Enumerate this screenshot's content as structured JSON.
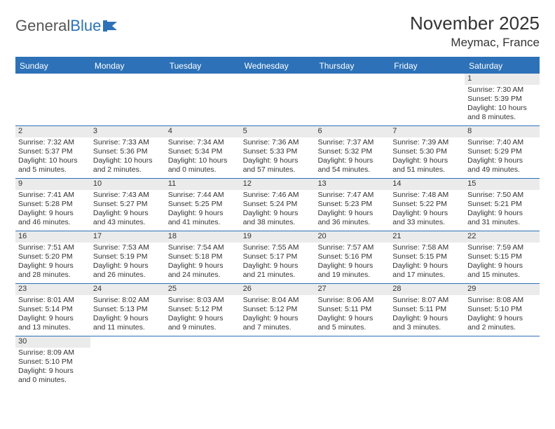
{
  "logo": {
    "general": "General",
    "blue": "Blue"
  },
  "title": "November 2025",
  "location": "Meymac, France",
  "colors": {
    "header_bg": "#2d72b8",
    "header_text": "#ffffff",
    "daynum_bg": "#ebebeb",
    "border": "#2d72b8",
    "text": "#333333",
    "page_bg": "#ffffff"
  },
  "weekdays": [
    "Sunday",
    "Monday",
    "Tuesday",
    "Wednesday",
    "Thursday",
    "Friday",
    "Saturday"
  ],
  "weeks": [
    [
      {
        "n": "",
        "sr": "",
        "ss": "",
        "dl": ""
      },
      {
        "n": "",
        "sr": "",
        "ss": "",
        "dl": ""
      },
      {
        "n": "",
        "sr": "",
        "ss": "",
        "dl": ""
      },
      {
        "n": "",
        "sr": "",
        "ss": "",
        "dl": ""
      },
      {
        "n": "",
        "sr": "",
        "ss": "",
        "dl": ""
      },
      {
        "n": "",
        "sr": "",
        "ss": "",
        "dl": ""
      },
      {
        "n": "1",
        "sr": "Sunrise: 7:30 AM",
        "ss": "Sunset: 5:39 PM",
        "dl": "Daylight: 10 hours and 8 minutes."
      }
    ],
    [
      {
        "n": "2",
        "sr": "Sunrise: 7:32 AM",
        "ss": "Sunset: 5:37 PM",
        "dl": "Daylight: 10 hours and 5 minutes."
      },
      {
        "n": "3",
        "sr": "Sunrise: 7:33 AM",
        "ss": "Sunset: 5:36 PM",
        "dl": "Daylight: 10 hours and 2 minutes."
      },
      {
        "n": "4",
        "sr": "Sunrise: 7:34 AM",
        "ss": "Sunset: 5:34 PM",
        "dl": "Daylight: 10 hours and 0 minutes."
      },
      {
        "n": "5",
        "sr": "Sunrise: 7:36 AM",
        "ss": "Sunset: 5:33 PM",
        "dl": "Daylight: 9 hours and 57 minutes."
      },
      {
        "n": "6",
        "sr": "Sunrise: 7:37 AM",
        "ss": "Sunset: 5:32 PM",
        "dl": "Daylight: 9 hours and 54 minutes."
      },
      {
        "n": "7",
        "sr": "Sunrise: 7:39 AM",
        "ss": "Sunset: 5:30 PM",
        "dl": "Daylight: 9 hours and 51 minutes."
      },
      {
        "n": "8",
        "sr": "Sunrise: 7:40 AM",
        "ss": "Sunset: 5:29 PM",
        "dl": "Daylight: 9 hours and 49 minutes."
      }
    ],
    [
      {
        "n": "9",
        "sr": "Sunrise: 7:41 AM",
        "ss": "Sunset: 5:28 PM",
        "dl": "Daylight: 9 hours and 46 minutes."
      },
      {
        "n": "10",
        "sr": "Sunrise: 7:43 AM",
        "ss": "Sunset: 5:27 PM",
        "dl": "Daylight: 9 hours and 43 minutes."
      },
      {
        "n": "11",
        "sr": "Sunrise: 7:44 AM",
        "ss": "Sunset: 5:25 PM",
        "dl": "Daylight: 9 hours and 41 minutes."
      },
      {
        "n": "12",
        "sr": "Sunrise: 7:46 AM",
        "ss": "Sunset: 5:24 PM",
        "dl": "Daylight: 9 hours and 38 minutes."
      },
      {
        "n": "13",
        "sr": "Sunrise: 7:47 AM",
        "ss": "Sunset: 5:23 PM",
        "dl": "Daylight: 9 hours and 36 minutes."
      },
      {
        "n": "14",
        "sr": "Sunrise: 7:48 AM",
        "ss": "Sunset: 5:22 PM",
        "dl": "Daylight: 9 hours and 33 minutes."
      },
      {
        "n": "15",
        "sr": "Sunrise: 7:50 AM",
        "ss": "Sunset: 5:21 PM",
        "dl": "Daylight: 9 hours and 31 minutes."
      }
    ],
    [
      {
        "n": "16",
        "sr": "Sunrise: 7:51 AM",
        "ss": "Sunset: 5:20 PM",
        "dl": "Daylight: 9 hours and 28 minutes."
      },
      {
        "n": "17",
        "sr": "Sunrise: 7:53 AM",
        "ss": "Sunset: 5:19 PM",
        "dl": "Daylight: 9 hours and 26 minutes."
      },
      {
        "n": "18",
        "sr": "Sunrise: 7:54 AM",
        "ss": "Sunset: 5:18 PM",
        "dl": "Daylight: 9 hours and 24 minutes."
      },
      {
        "n": "19",
        "sr": "Sunrise: 7:55 AM",
        "ss": "Sunset: 5:17 PM",
        "dl": "Daylight: 9 hours and 21 minutes."
      },
      {
        "n": "20",
        "sr": "Sunrise: 7:57 AM",
        "ss": "Sunset: 5:16 PM",
        "dl": "Daylight: 9 hours and 19 minutes."
      },
      {
        "n": "21",
        "sr": "Sunrise: 7:58 AM",
        "ss": "Sunset: 5:15 PM",
        "dl": "Daylight: 9 hours and 17 minutes."
      },
      {
        "n": "22",
        "sr": "Sunrise: 7:59 AM",
        "ss": "Sunset: 5:15 PM",
        "dl": "Daylight: 9 hours and 15 minutes."
      }
    ],
    [
      {
        "n": "23",
        "sr": "Sunrise: 8:01 AM",
        "ss": "Sunset: 5:14 PM",
        "dl": "Daylight: 9 hours and 13 minutes."
      },
      {
        "n": "24",
        "sr": "Sunrise: 8:02 AM",
        "ss": "Sunset: 5:13 PM",
        "dl": "Daylight: 9 hours and 11 minutes."
      },
      {
        "n": "25",
        "sr": "Sunrise: 8:03 AM",
        "ss": "Sunset: 5:12 PM",
        "dl": "Daylight: 9 hours and 9 minutes."
      },
      {
        "n": "26",
        "sr": "Sunrise: 8:04 AM",
        "ss": "Sunset: 5:12 PM",
        "dl": "Daylight: 9 hours and 7 minutes."
      },
      {
        "n": "27",
        "sr": "Sunrise: 8:06 AM",
        "ss": "Sunset: 5:11 PM",
        "dl": "Daylight: 9 hours and 5 minutes."
      },
      {
        "n": "28",
        "sr": "Sunrise: 8:07 AM",
        "ss": "Sunset: 5:11 PM",
        "dl": "Daylight: 9 hours and 3 minutes."
      },
      {
        "n": "29",
        "sr": "Sunrise: 8:08 AM",
        "ss": "Sunset: 5:10 PM",
        "dl": "Daylight: 9 hours and 2 minutes."
      }
    ],
    [
      {
        "n": "30",
        "sr": "Sunrise: 8:09 AM",
        "ss": "Sunset: 5:10 PM",
        "dl": "Daylight: 9 hours and 0 minutes."
      },
      {
        "n": "",
        "sr": "",
        "ss": "",
        "dl": ""
      },
      {
        "n": "",
        "sr": "",
        "ss": "",
        "dl": ""
      },
      {
        "n": "",
        "sr": "",
        "ss": "",
        "dl": ""
      },
      {
        "n": "",
        "sr": "",
        "ss": "",
        "dl": ""
      },
      {
        "n": "",
        "sr": "",
        "ss": "",
        "dl": ""
      },
      {
        "n": "",
        "sr": "",
        "ss": "",
        "dl": ""
      }
    ]
  ]
}
